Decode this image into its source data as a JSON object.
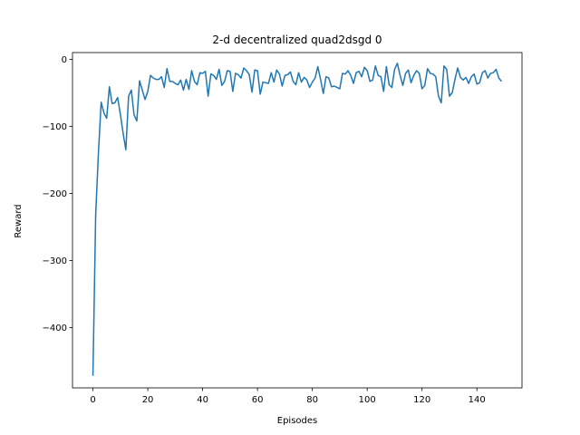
{
  "chart_data": {
    "type": "line",
    "title": "2-d decentralized quad2dsgd 0",
    "xlabel": "Episodes",
    "ylabel": "Reward",
    "xlim": [
      -7.45,
      156.45
    ],
    "ylim": [
      -490,
      10
    ],
    "xticks": [
      0,
      20,
      40,
      60,
      80,
      100,
      120,
      140
    ],
    "yticks": [
      0,
      -100,
      -200,
      -300,
      -400
    ],
    "ytick_labels": [
      "0",
      "−100",
      "−200",
      "−300",
      "−400"
    ],
    "grid": false,
    "series": [
      {
        "color": "#1f77b4",
        "x": [
          0,
          1,
          2,
          3,
          4,
          5,
          6,
          7,
          8,
          9,
          10,
          11,
          12,
          13,
          14,
          15,
          16,
          17,
          18,
          19,
          20,
          21,
          22,
          23,
          24,
          25,
          26,
          27,
          28,
          29,
          30,
          31,
          32,
          33,
          34,
          35,
          36,
          37,
          38,
          39,
          40,
          41,
          42,
          43,
          44,
          45,
          46,
          47,
          48,
          49,
          50,
          51,
          52,
          53,
          54,
          55,
          56,
          57,
          58,
          59,
          60,
          61,
          62,
          63,
          64,
          65,
          66,
          67,
          68,
          69,
          70,
          71,
          72,
          73,
          74,
          75,
          76,
          77,
          78,
          79,
          80,
          81,
          82,
          83,
          84,
          85,
          86,
          87,
          88,
          89,
          90,
          91,
          92,
          93,
          94,
          95,
          96,
          97,
          98,
          99,
          100,
          101,
          102,
          103,
          104,
          105,
          106,
          107,
          108,
          109,
          110,
          111,
          112,
          113,
          114,
          115,
          116,
          117,
          118,
          119,
          120,
          121,
          122,
          123,
          124,
          125,
          126,
          127,
          128,
          129,
          130,
          131,
          132,
          133,
          134,
          135,
          136,
          137,
          138,
          139,
          140,
          141,
          142,
          143,
          144,
          145,
          146,
          147,
          148,
          149
        ],
        "values": [
          -472,
          -232,
          -140,
          -64,
          -80,
          -88,
          -41,
          -66,
          -65,
          -57,
          -82,
          -110,
          -135,
          -55,
          -46,
          -83,
          -92,
          -32,
          -46,
          -60,
          -48,
          -24,
          -28,
          -30,
          -30,
          -26,
          -42,
          -14,
          -33,
          -33,
          -36,
          -38,
          -31,
          -46,
          -30,
          -45,
          -17,
          -33,
          -38,
          -20,
          -21,
          -18,
          -55,
          -22,
          -24,
          -30,
          -15,
          -39,
          -33,
          -17,
          -18,
          -48,
          -21,
          -23,
          -28,
          -13,
          -17,
          -23,
          -49,
          -16,
          -17,
          -52,
          -34,
          -35,
          -36,
          -20,
          -34,
          -16,
          -22,
          -40,
          -24,
          -23,
          -19,
          -33,
          -38,
          -20,
          -34,
          -27,
          -31,
          -42,
          -34,
          -28,
          -11,
          -30,
          -51,
          -26,
          -28,
          -41,
          -40,
          -42,
          -44,
          -21,
          -22,
          -17,
          -24,
          -36,
          -20,
          -18,
          -26,
          -12,
          -17,
          -33,
          -31,
          -10,
          -24,
          -26,
          -48,
          -11,
          -38,
          -42,
          -15,
          -6,
          -24,
          -39,
          -21,
          -16,
          -35,
          -24,
          -17,
          -21,
          -44,
          -39,
          -14,
          -21,
          -22,
          -26,
          -55,
          -65,
          -10,
          -15,
          -55,
          -50,
          -30,
          -13,
          -27,
          -31,
          -27,
          -36,
          -26,
          -22,
          -37,
          -35,
          -20,
          -17,
          -28,
          -21,
          -20,
          -15,
          -28,
          -33
        ]
      }
    ]
  }
}
